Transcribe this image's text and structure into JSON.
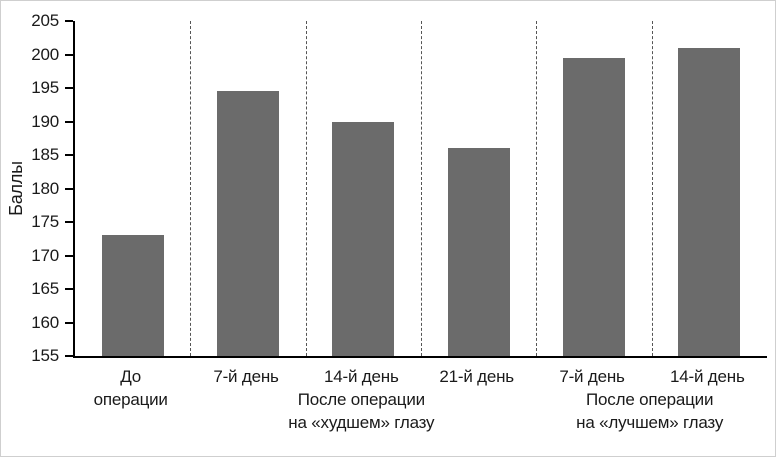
{
  "chart_data": {
    "type": "bar",
    "title": "",
    "ylabel": "Баллы",
    "xlabel": "",
    "ylim": [
      155,
      205
    ],
    "ytick_step": 5,
    "ytick_labels": [
      "205",
      "200",
      "195",
      "190",
      "185",
      "180",
      "175",
      "170",
      "165",
      "160",
      "155"
    ],
    "categories": [
      "До\nоперации",
      "7-й день",
      "14-й день",
      "21-й день",
      "7-й день",
      "14-й день"
    ],
    "values": [
      173,
      194.5,
      190,
      186,
      199.5,
      201
    ],
    "group_labels": [
      {
        "label": "После операции\nна «худшем» глазу",
        "start": 1,
        "end": 3
      },
      {
        "label": "После операции\nна «лучшем» глазу",
        "start": 4,
        "end": 5
      }
    ],
    "bar_color": "#6b6b6b",
    "axis_color": "#000000",
    "background": "#ffffff",
    "grid": "vertical-dashed-between-categories",
    "legend": "none"
  }
}
